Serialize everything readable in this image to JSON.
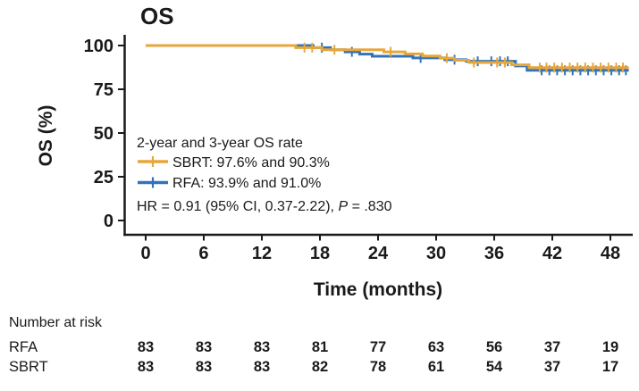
{
  "colors": {
    "sbrt": "#E7A63B",
    "rfa": "#3273B8",
    "axis": "#1a1a1a",
    "text": "#1a1a1a"
  },
  "chart_data": {
    "type": "line",
    "subtype": "kaplan-meier-step",
    "title": "OS",
    "xlabel": "Time (months)",
    "ylabel": "OS (%)",
    "xlim": [
      0,
      50
    ],
    "ylim": [
      0,
      100
    ],
    "x_ticks": [
      0,
      6,
      12,
      18,
      24,
      30,
      36,
      42,
      48
    ],
    "y_ticks": [
      100,
      75,
      50,
      25,
      0
    ],
    "grid": false,
    "legend_position": "inside-lower-left",
    "series": [
      {
        "name": "SBRT",
        "color": "#E7A63B",
        "start": [
          0,
          100
        ],
        "drops": [
          [
            15.5,
            98.8
          ],
          [
            18.2,
            97.6
          ],
          [
            24.6,
            96.4
          ],
          [
            26.8,
            95.2
          ],
          [
            28.6,
            94.0
          ],
          [
            30.4,
            92.8
          ],
          [
            31.9,
            91.6
          ],
          [
            33.4,
            90.3
          ],
          [
            37.8,
            89.0
          ],
          [
            39.6,
            87.4
          ]
        ],
        "end_x": 49.9,
        "censor_x": [
          16.4,
          17.2,
          19.5,
          25.3,
          31.1,
          33.9,
          36.3,
          37.1,
          40.7,
          41.4,
          42.2,
          43.0,
          43.8,
          44.6,
          45.4,
          46.2,
          47.0,
          47.8,
          48.6,
          49.3
        ],
        "rate_2yr": 97.6,
        "rate_3yr": 90.3
      },
      {
        "name": "RFA",
        "color": "#3273B8",
        "start": [
          0,
          100
        ],
        "drops": [
          [
            17.3,
            98.8
          ],
          [
            19.1,
            97.6
          ],
          [
            20.6,
            96.4
          ],
          [
            22.1,
            95.1
          ],
          [
            23.4,
            93.9
          ],
          [
            27.6,
            92.9
          ],
          [
            30.9,
            91.9
          ],
          [
            33.1,
            91.0
          ],
          [
            38.2,
            88.3
          ],
          [
            39.4,
            85.8
          ]
        ],
        "end_x": 49.9,
        "censor_x": [
          18.2,
          21.3,
          28.4,
          31.9,
          34.3,
          35.7,
          36.6,
          37.4,
          40.9,
          41.7,
          42.5,
          43.3,
          44.1,
          44.9,
          45.7,
          46.5,
          47.3,
          48.1,
          48.9,
          49.6
        ],
        "rate_2yr": 93.9,
        "rate_3yr": 91.0
      }
    ],
    "annotations": {
      "legend_heading": "2-year and 3-year OS rate",
      "sbrt_label": "SBRT: 97.6% and 90.3%",
      "rfa_label": "RFA: 93.9% and 91.0%",
      "hr_prefix": "HR = 0.91 (95% CI, 0.37-2.22), ",
      "hr_p": "P",
      "hr_suffix": " = .830"
    },
    "number_at_risk": {
      "heading": "Number at risk",
      "rows": [
        {
          "label": "RFA",
          "color": "#3273B8",
          "values": [
            83,
            83,
            83,
            81,
            77,
            63,
            56,
            37,
            19
          ]
        },
        {
          "label": "SBRT",
          "color": "#E7A63B",
          "values": [
            83,
            83,
            83,
            82,
            78,
            61,
            54,
            37,
            17
          ]
        }
      ]
    }
  }
}
